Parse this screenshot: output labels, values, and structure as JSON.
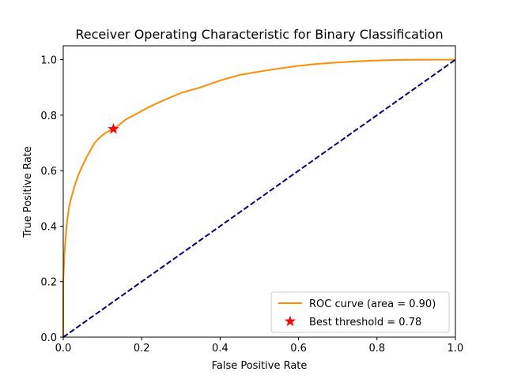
{
  "chart_data": {
    "type": "line",
    "title": "Receiver Operating Characteristic for Binary Classification",
    "xlabel": "False Positive Rate",
    "ylabel": "True Positive Rate",
    "xlim": [
      0.0,
      1.0
    ],
    "ylim": [
      0.0,
      1.05
    ],
    "x_ticks": [
      "0.0",
      "0.2",
      "0.4",
      "0.6",
      "0.8",
      "1.0"
    ],
    "y_ticks": [
      "0.0",
      "0.2",
      "0.4",
      "0.6",
      "0.8",
      "1.0"
    ],
    "grid": false,
    "legend_position": "lower right",
    "series": [
      {
        "name": "ROC curve (area = 0.90)",
        "color": "#ff8c00",
        "style": "solid",
        "x": [
          0.0,
          0.0,
          0.003,
          0.006,
          0.01,
          0.015,
          0.02,
          0.03,
          0.04,
          0.05,
          0.06,
          0.07,
          0.08,
          0.09,
          0.1,
          0.11,
          0.12,
          0.128,
          0.14,
          0.16,
          0.18,
          0.2,
          0.22,
          0.25,
          0.3,
          0.35,
          0.4,
          0.45,
          0.5,
          0.55,
          0.6,
          0.65,
          0.7,
          0.75,
          0.8,
          0.85,
          0.9,
          0.95,
          1.0
        ],
        "y": [
          0.0,
          0.2,
          0.3,
          0.36,
          0.42,
          0.47,
          0.5,
          0.55,
          0.59,
          0.62,
          0.65,
          0.675,
          0.7,
          0.715,
          0.728,
          0.738,
          0.745,
          0.75,
          0.762,
          0.785,
          0.8,
          0.815,
          0.83,
          0.85,
          0.88,
          0.9,
          0.925,
          0.945,
          0.957,
          0.968,
          0.978,
          0.985,
          0.99,
          0.994,
          0.997,
          0.999,
          1.0,
          1.0,
          1.0
        ]
      },
      {
        "name": "",
        "color": "#000080",
        "style": "dashed",
        "x": [
          0.0,
          1.0
        ],
        "y": [
          0.0,
          1.0
        ]
      }
    ],
    "markers": [
      {
        "name": "Best threshold = 0.78",
        "color": "#ff0000",
        "shape": "star",
        "x": 0.128,
        "y": 0.75
      }
    ]
  }
}
